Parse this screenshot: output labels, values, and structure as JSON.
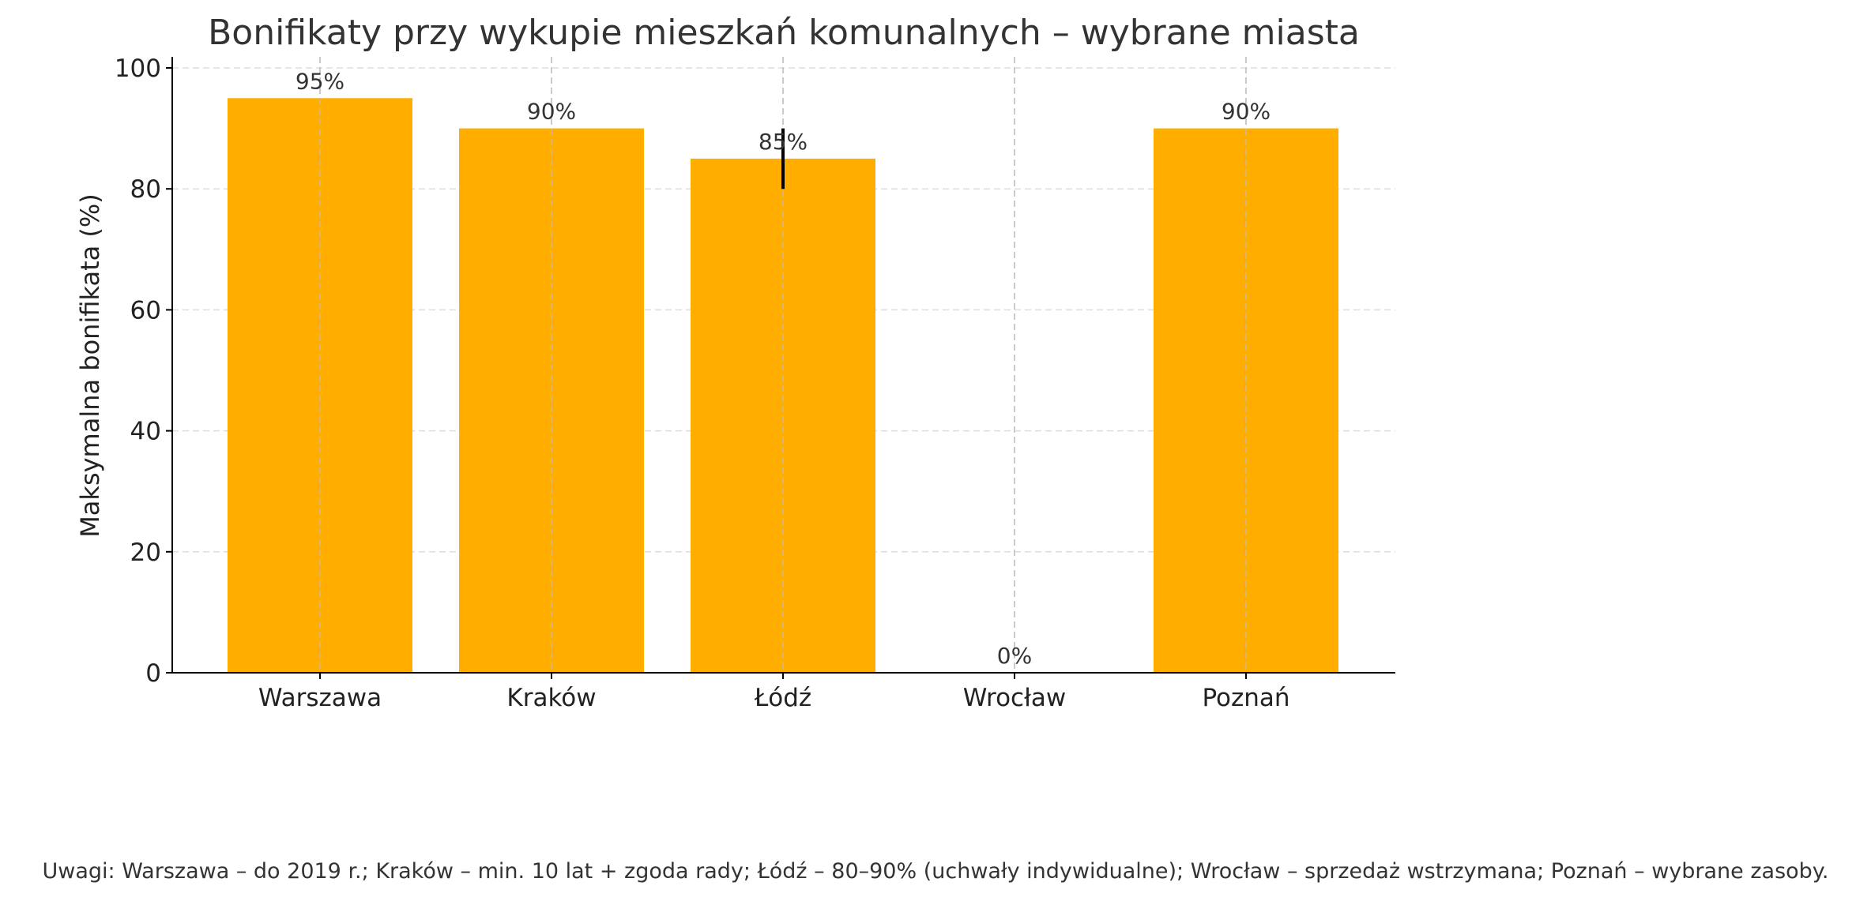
{
  "chart_data": {
    "type": "bar",
    "title": "Bonifikaty przy wykupie mieszkań komunalnych – wybrane miasta",
    "xlabel": "",
    "ylabel": "Maksymalna bonifikata (%)",
    "categories": [
      "Warszawa",
      "Kraków",
      "Łódź",
      "Wrocław",
      "Poznań"
    ],
    "values": [
      95,
      90,
      85,
      0,
      90
    ],
    "data_labels": [
      "95%",
      "90%",
      "85%",
      "0%",
      "90%"
    ],
    "error_ranges": [
      null,
      null,
      [
        80,
        90
      ],
      null,
      null
    ],
    "ylim": [
      0,
      102
    ],
    "yticks": [
      0,
      20,
      40,
      60,
      80,
      100
    ],
    "grid": true,
    "bar_color": "#FFAE00",
    "note": "Uwagi: Warszawa – do 2019 r.; Kraków – min. 10 lat + zgoda rady; Łódź – 80–90% (uchwały indywidualne); Wrocław – sprzedaż wstrzymana; Poznań – wybrane zasoby."
  }
}
